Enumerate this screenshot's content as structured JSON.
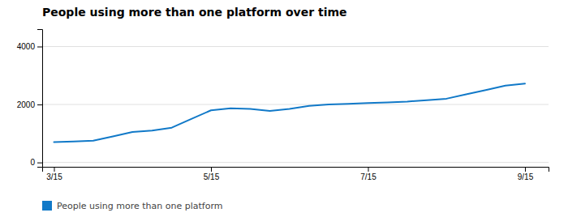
{
  "chart_data": {
    "type": "line",
    "title": "People using more than one platform over time",
    "x": [
      0,
      0.5,
      1,
      1.5,
      2,
      2.5,
      3,
      3.5,
      4,
      4.5,
      5,
      5.5,
      6,
      6.5,
      7,
      7.5,
      8,
      8.5,
      9,
      9.5,
      10,
      10.5,
      11,
      11.5,
      12
    ],
    "series": [
      {
        "name": "People using more than one platform",
        "color": "#1179c8",
        "values": [
          700,
          720,
          750,
          900,
          1050,
          1100,
          1200,
          1500,
          1800,
          1870,
          1850,
          1780,
          1850,
          1950,
          2000,
          2020,
          2050,
          2070,
          2100,
          2150,
          2200,
          2350,
          2500,
          2650,
          2720
        ]
      }
    ],
    "xlim": [
      -0.3,
      12.6
    ],
    "xticks": [
      {
        "value": 0,
        "label": "3/15"
      },
      {
        "value": 4,
        "label": "5/15"
      },
      {
        "value": 8,
        "label": "7/15"
      },
      {
        "value": 12,
        "label": "9/15"
      }
    ],
    "ylim": [
      -150,
      4600
    ],
    "yticks": [
      0,
      2000,
      4000
    ],
    "grid": true,
    "legend": "bottom-left"
  }
}
